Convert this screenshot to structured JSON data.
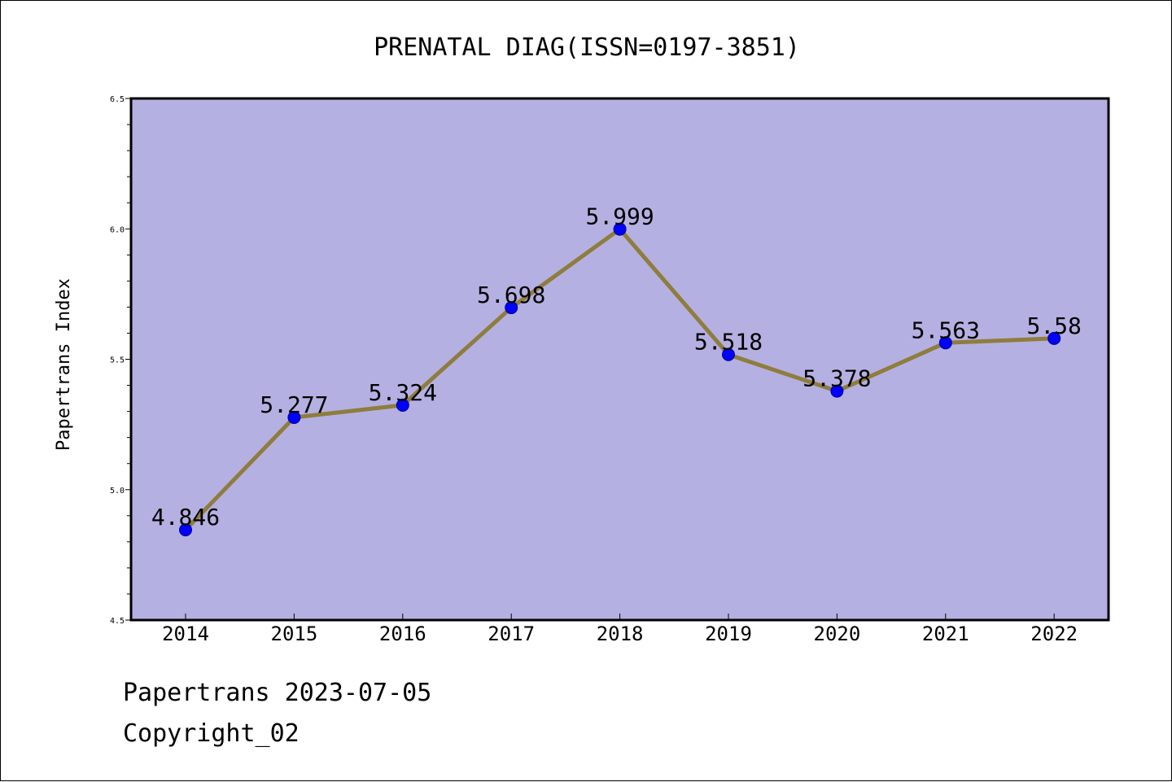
{
  "chart_data": {
    "type": "line",
    "title": "PRENATAL DIAG(ISSN=0197-3851)",
    "xlabel": "",
    "ylabel": "Papertrans Index",
    "categories": [
      "2014",
      "2015",
      "2016",
      "2017",
      "2018",
      "2019",
      "2020",
      "2021",
      "2022"
    ],
    "series": [
      {
        "values": [
          4.846,
          5.277,
          5.324,
          5.698,
          5.999,
          5.518,
          5.378,
          5.563,
          5.58
        ],
        "labels": [
          "4.846",
          "5.277",
          "5.324",
          "5.698",
          "5.999",
          "5.518",
          "5.378",
          "5.563",
          "5.58"
        ]
      }
    ],
    "ylim": [
      4.5,
      6.5
    ],
    "yticks": [
      "4.5",
      "5.0",
      "5.5",
      "6.0",
      "6.5"
    ],
    "grid": false,
    "colors": {
      "plot_background": "#b5b0e2",
      "line": "#8e7d3c",
      "marker": "#0000ff",
      "marker_edge": "#00008b"
    }
  },
  "footer": {
    "line1": "Papertrans 2023-07-05",
    "line2": "Copyright_02"
  }
}
